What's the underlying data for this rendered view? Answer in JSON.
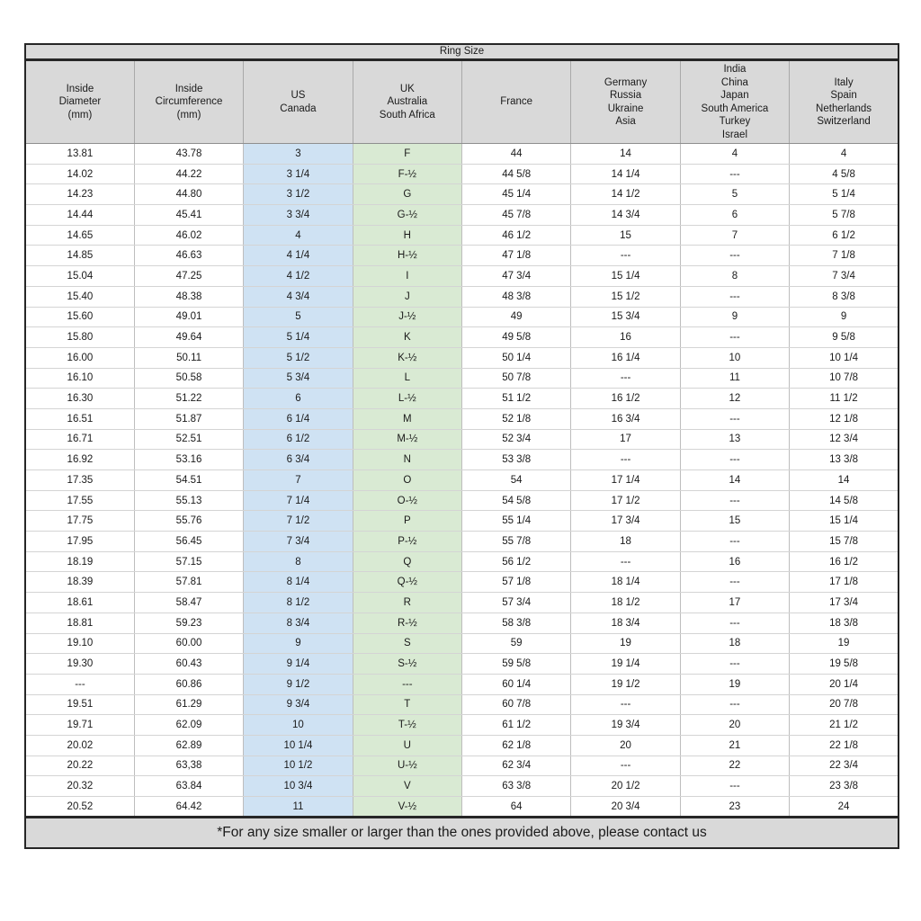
{
  "title": "Ring Size",
  "footer_note": "*For any size smaller or larger than the ones provided above, please contact us",
  "colors": {
    "band_bg": "#d9d9d9",
    "header_bg": "#d9d9d9",
    "us_canada_bg": "#cfe2f3",
    "uk_bg": "#d9ead3"
  },
  "columns": [
    {
      "id": "inside-diameter",
      "header": "Inside\nDiameter\n(mm)"
    },
    {
      "id": "inside-circumference",
      "header": "Inside\nCircumference\n(mm)"
    },
    {
      "id": "us-canada",
      "header": "US\nCanada"
    },
    {
      "id": "uk-australia-south-africa",
      "header": "UK\nAustralia\nSouth Africa"
    },
    {
      "id": "france",
      "header": "France"
    },
    {
      "id": "germany-russia-ukraine-asia",
      "header": "Germany\nRussia\nUkraine\nAsia"
    },
    {
      "id": "india-china-japan-south-america-turkey-israel",
      "header": "India\nChina\nJapan\nSouth America\nTurkey\nIsrael"
    },
    {
      "id": "italy-spain-netherlands-switzerland",
      "header": "Italy\nSpain\nNetherlands\nSwitzerland"
    }
  ],
  "rows": [
    [
      "13.81",
      "43.78",
      "3",
      "F",
      "44",
      "14",
      "4",
      "4"
    ],
    [
      "14.02",
      "44.22",
      "3 1/4",
      "F-½",
      "44 5/8",
      "14 1/4",
      "---",
      "4 5/8"
    ],
    [
      "14.23",
      "44.80",
      "3 1/2",
      "G",
      "45 1/4",
      "14 1/2",
      "5",
      "5 1/4"
    ],
    [
      "14.44",
      "45.41",
      "3 3/4",
      "G-½",
      "45 7/8",
      "14 3/4",
      "6",
      "5 7/8"
    ],
    [
      "14.65",
      "46.02",
      "4",
      "H",
      "46 1/2",
      "15",
      "7",
      "6 1/2"
    ],
    [
      "14.85",
      "46.63",
      "4 1/4",
      "H-½",
      "47 1/8",
      "---",
      "---",
      "7 1/8"
    ],
    [
      "15.04",
      "47.25",
      "4 1/2",
      "I",
      "47 3/4",
      "15 1/4",
      "8",
      "7 3/4"
    ],
    [
      "15.40",
      "48.38",
      "4 3/4",
      "J",
      "48 3/8",
      "15 1/2",
      "---",
      "8 3/8"
    ],
    [
      "15.60",
      "49.01",
      "5",
      "J-½",
      "49",
      "15 3/4",
      "9",
      "9"
    ],
    [
      "15.80",
      "49.64",
      "5 1/4",
      "K",
      "49 5/8",
      "16",
      "---",
      "9 5/8"
    ],
    [
      "16.00",
      "50.11",
      "5 1/2",
      "K-½",
      "50 1/4",
      "16 1/4",
      "10",
      "10 1/4"
    ],
    [
      "16.10",
      "50.58",
      "5 3/4",
      "L",
      "50 7/8",
      "---",
      "11",
      "10 7/8"
    ],
    [
      "16.30",
      "51.22",
      "6",
      "L-½",
      "51 1/2",
      "16 1/2",
      "12",
      "11 1/2"
    ],
    [
      "16.51",
      "51.87",
      "6 1/4",
      "M",
      "52 1/8",
      "16 3/4",
      "---",
      "12 1/8"
    ],
    [
      "16.71",
      "52.51",
      "6 1/2",
      "M-½",
      "52 3/4",
      "17",
      "13",
      "12 3/4"
    ],
    [
      "16.92",
      "53.16",
      "6 3/4",
      "N",
      "53 3/8",
      "---",
      "---",
      "13 3/8"
    ],
    [
      "17.35",
      "54.51",
      "7",
      "O",
      "54",
      "17 1/4",
      "14",
      "14"
    ],
    [
      "17.55",
      "55.13",
      "7 1/4",
      "O-½",
      "54 5/8",
      "17 1/2",
      "---",
      "14 5/8"
    ],
    [
      "17.75",
      "55.76",
      "7 1/2",
      "P",
      "55 1/4",
      "17 3/4",
      "15",
      "15 1/4"
    ],
    [
      "17.95",
      "56.45",
      "7 3/4",
      "P-½",
      "55 7/8",
      "18",
      "---",
      "15 7/8"
    ],
    [
      "18.19",
      "57.15",
      "8",
      "Q",
      "56 1/2",
      "---",
      "16",
      "16 1/2"
    ],
    [
      "18.39",
      "57.81",
      "8 1/4",
      "Q-½",
      "57 1/8",
      "18 1/4",
      "---",
      "17 1/8"
    ],
    [
      "18.61",
      "58.47",
      "8 1/2",
      "R",
      "57 3/4",
      "18 1/2",
      "17",
      "17 3/4"
    ],
    [
      "18.81",
      "59.23",
      "8 3/4",
      "R-½",
      "58 3/8",
      "18 3/4",
      "---",
      "18 3/8"
    ],
    [
      "19.10",
      "60.00",
      "9",
      "S",
      "59",
      "19",
      "18",
      "19"
    ],
    [
      "19.30",
      "60.43",
      "9 1/4",
      "S-½",
      "59 5/8",
      "19 1/4",
      "---",
      "19 5/8"
    ],
    [
      "---",
      "60.86",
      "9 1/2",
      "---",
      "60 1/4",
      "19 1/2",
      "19",
      "20 1/4"
    ],
    [
      "19.51",
      "61.29",
      "9 3/4",
      "T",
      "60 7/8",
      "---",
      "---",
      "20 7/8"
    ],
    [
      "19.71",
      "62.09",
      "10",
      "T-½",
      "61 1/2",
      "19 3/4",
      "20",
      "21 1/2"
    ],
    [
      "20.02",
      "62.89",
      "10 1/4",
      "U",
      "62 1/8",
      "20",
      "21",
      "22 1/8"
    ],
    [
      "20.22",
      "63,38",
      "10 1/2",
      "U-½",
      "62 3/4",
      "---",
      "22",
      "22 3/4"
    ],
    [
      "20.32",
      "63.84",
      "10 3/4",
      "V",
      "63 3/8",
      "20 1/2",
      "---",
      "23 3/8"
    ],
    [
      "20.52",
      "64.42",
      "11",
      "V-½",
      "64",
      "20 3/4",
      "23",
      "24"
    ]
  ]
}
